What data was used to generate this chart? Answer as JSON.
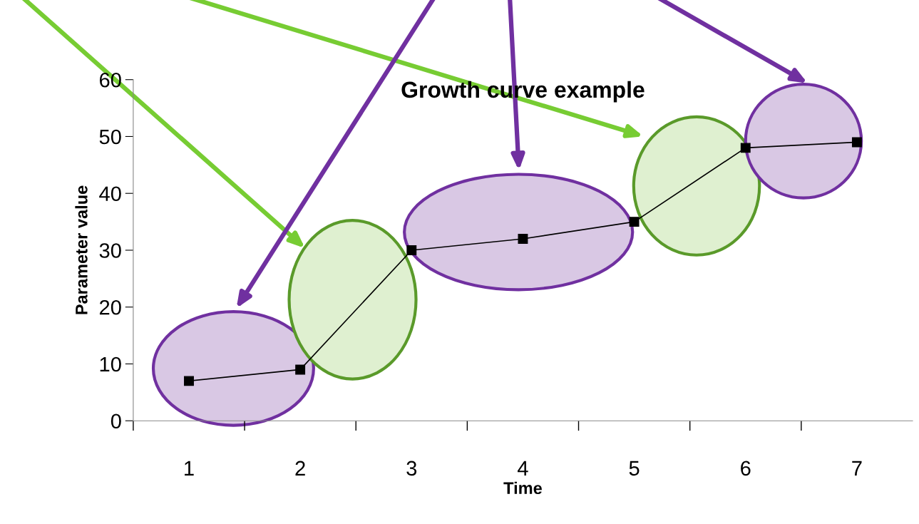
{
  "chart_data": {
    "type": "line",
    "title": "Growth curve example",
    "xlabel": "Time",
    "ylabel": "Parameter value",
    "categories": [
      "1",
      "2",
      "3",
      "4",
      "5",
      "6",
      "7"
    ],
    "series": [
      {
        "color": "#000000",
        "values": [
          7,
          9,
          30,
          32,
          35,
          48,
          49
        ]
      }
    ],
    "ylim": [
      0,
      60
    ],
    "yticks": [
      0,
      10,
      20,
      30,
      40,
      50,
      60
    ],
    "marker": "square",
    "line_style": "solid",
    "grid": false,
    "legend": false
  }
}
